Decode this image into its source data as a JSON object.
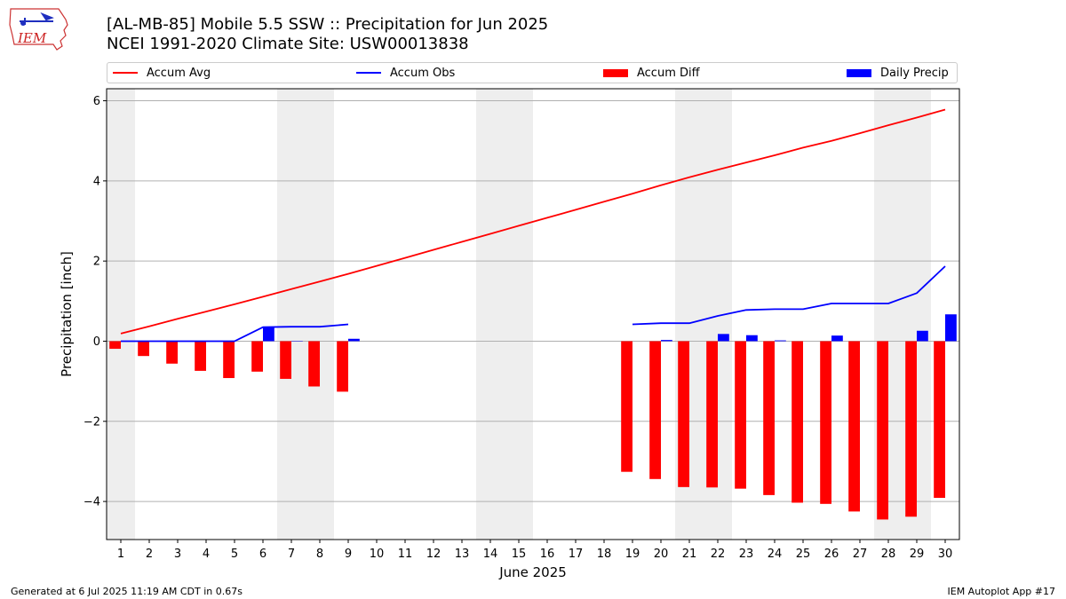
{
  "header": {
    "title_line1": "[AL-MB-85] Mobile 5.5 SSW :: Precipitation for Jun 2025",
    "title_line2": "NCEI 1991-2020 Climate Site: USW00013838",
    "logo_text": "IEM"
  },
  "footer": {
    "generated": "Generated at 6 Jul 2025 11:19 AM CDT in 0.67s",
    "app": "IEM Autoplot App #17"
  },
  "chart_data": {
    "type": "bar",
    "xlabel": "June 2025",
    "ylabel": "Precipitation [inch]",
    "xlim": [
      0.5,
      30.5
    ],
    "ylim": [
      -4.95,
      6.3
    ],
    "y_ticks": [
      -4,
      -2,
      0,
      2,
      4,
      6
    ],
    "y_tick_labels": [
      "−4",
      "−2",
      "0",
      "2",
      "4",
      "6"
    ],
    "grid": "horizontal",
    "legend_position": "top",
    "weekend_shading": [
      [
        0.5,
        1.5
      ],
      [
        6.5,
        8.5
      ],
      [
        13.5,
        15.5
      ],
      [
        20.5,
        22.5
      ],
      [
        27.5,
        29.5
      ]
    ],
    "days": [
      1,
      2,
      3,
      4,
      5,
      6,
      7,
      8,
      9,
      10,
      11,
      12,
      13,
      14,
      15,
      16,
      17,
      18,
      19,
      20,
      21,
      22,
      23,
      24,
      25,
      26,
      27,
      28,
      29,
      30
    ],
    "series": [
      {
        "name": "Accum Avg",
        "kind": "line",
        "color": "#ff0000",
        "values": [
          0.19,
          0.37,
          0.56,
          0.74,
          0.92,
          1.11,
          1.3,
          1.49,
          1.68,
          1.88,
          2.08,
          2.28,
          2.48,
          2.68,
          2.88,
          3.08,
          3.28,
          3.48,
          3.68,
          3.89,
          4.09,
          4.28,
          4.46,
          4.64,
          4.83,
          5.0,
          5.19,
          5.39,
          5.58,
          5.78
        ]
      },
      {
        "name": "Accum Obs",
        "kind": "line",
        "color": "#0000ff",
        "values": [
          0.0,
          0.0,
          0.0,
          0.0,
          0.0,
          0.35,
          0.36,
          0.36,
          0.42,
          null,
          null,
          null,
          null,
          null,
          null,
          null,
          null,
          null,
          0.42,
          0.45,
          0.45,
          0.63,
          0.78,
          0.8,
          0.8,
          0.94,
          0.94,
          0.94,
          1.2,
          1.87
        ]
      },
      {
        "name": "Accum Diff",
        "kind": "bar",
        "color": "#ff0000",
        "values": [
          -0.19,
          -0.37,
          -0.56,
          -0.74,
          -0.92,
          -0.76,
          -0.94,
          -1.13,
          -1.26,
          null,
          null,
          null,
          null,
          null,
          null,
          null,
          null,
          null,
          -3.26,
          -3.44,
          -3.64,
          -3.65,
          -3.68,
          -3.84,
          -4.03,
          -4.06,
          -4.25,
          -4.45,
          -4.38,
          -3.91
        ]
      },
      {
        "name": "Daily Precip",
        "kind": "bar",
        "color": "#0000ff",
        "values": [
          0.0,
          0.0,
          0.0,
          0.0,
          0.0,
          0.35,
          0.01,
          0.0,
          0.06,
          null,
          null,
          null,
          null,
          null,
          null,
          null,
          null,
          null,
          0.0,
          0.03,
          0.0,
          0.18,
          0.15,
          0.02,
          0.0,
          0.14,
          0.0,
          0.0,
          0.26,
          0.67
        ]
      }
    ]
  }
}
